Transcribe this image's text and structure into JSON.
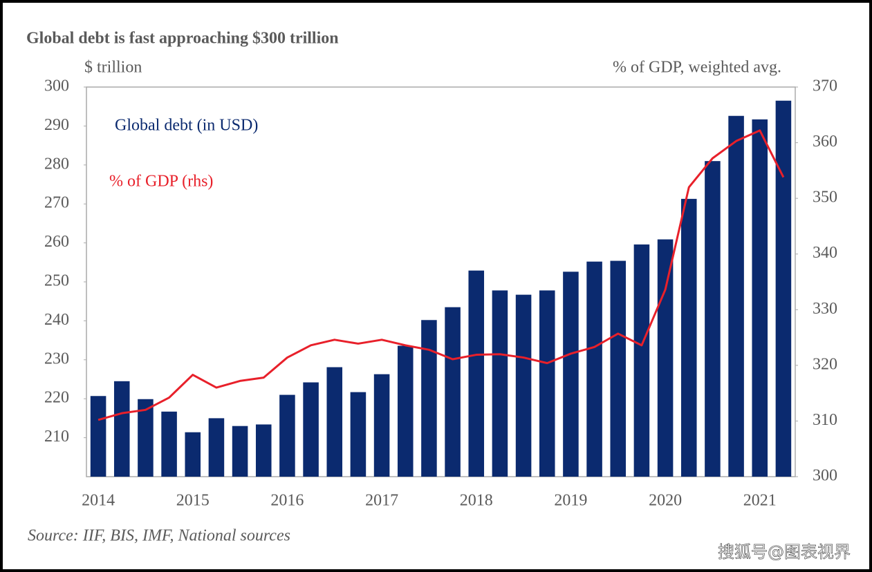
{
  "chart_data": {
    "type": "bar",
    "title": "Global debt is fast approaching $300 trillion",
    "y_label": "$ trillion",
    "y2_label": "% of GDP, weighted avg.",
    "source": "Source: IIF, BIS, IMF, National sources",
    "watermark": "搜狐号@图表视界",
    "categories": [
      "2014",
      null,
      null,
      null,
      "2015",
      null,
      null,
      null,
      "2016",
      null,
      null,
      null,
      "2017",
      null,
      null,
      null,
      "2018",
      null,
      null,
      null,
      "2019",
      null,
      null,
      null,
      "2020",
      null,
      null,
      null,
      "2021",
      null
    ],
    "series": [
      {
        "name": "Global debt (in USD)",
        "type": "bar",
        "color": "#0b2a6f",
        "values": [
          220.7,
          224.5,
          219.9,
          216.7,
          211.4,
          215,
          213,
          213.4,
          221,
          224.2,
          228.1,
          221.7,
          226.3,
          233.6,
          240.2,
          243.5,
          252.9,
          247.8,
          246.7,
          247.8,
          252.6,
          255.2,
          255.4,
          259.6,
          260.9,
          271.3,
          281,
          292.6,
          291.7,
          296.5
        ]
      },
      {
        "name": "% of GDP (rhs)",
        "type": "line",
        "axis": "y2",
        "color": "#e8202a",
        "values": [
          310.2,
          311.4,
          312,
          314.2,
          318.3,
          316,
          317.2,
          317.8,
          321.4,
          323.6,
          324.6,
          323.9,
          324.6,
          323.6,
          322.8,
          321.1,
          321.9,
          322,
          321.4,
          320.4,
          322.1,
          323.3,
          325.7,
          323.6,
          333.6,
          352,
          357.2,
          360.3,
          362.2,
          353.8
        ]
      }
    ],
    "ylim": [
      200,
      300
    ],
    "yticks": [
      210,
      220,
      230,
      240,
      250,
      260,
      270,
      280,
      290,
      300
    ],
    "y2lim": [
      300,
      370
    ],
    "y2ticks": [
      300,
      310,
      320,
      330,
      340,
      350,
      360,
      370
    ]
  }
}
